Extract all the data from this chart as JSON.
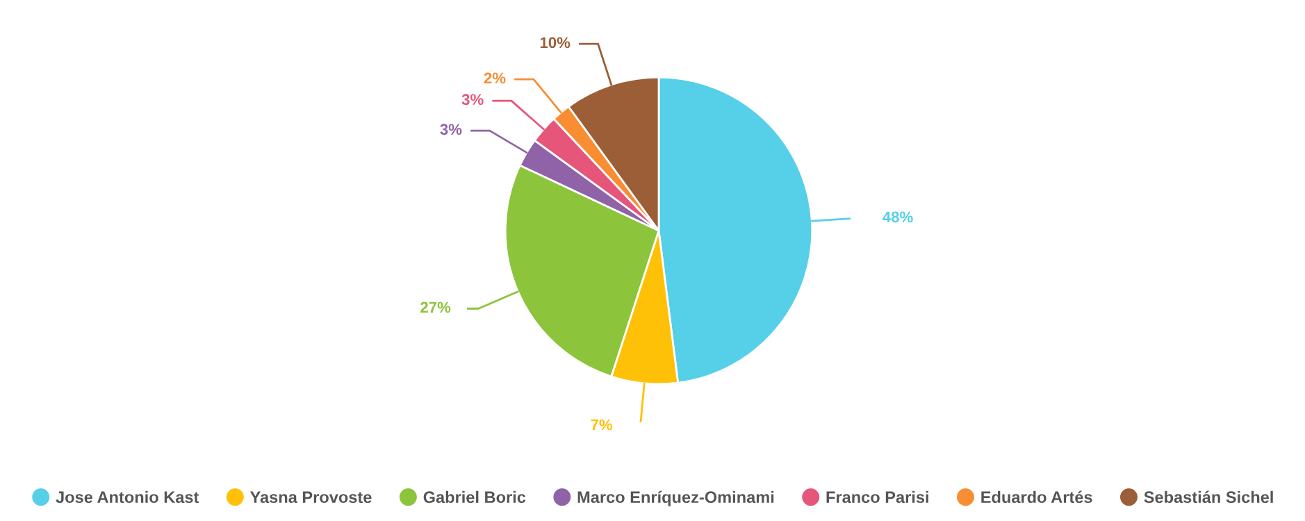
{
  "chart_data": {
    "type": "pie",
    "categories": [
      "Jose Antonio Kast",
      "Yasna Provoste",
      "Gabriel Boric",
      "Marco Enríquez-Ominami",
      "Franco Parisi",
      "Eduardo Artés",
      "Sebastián Sichel"
    ],
    "values": [
      48,
      7,
      27,
      3,
      3,
      2,
      10
    ],
    "value_labels": [
      "48%",
      "7%",
      "27%",
      "3%",
      "3%",
      "2%",
      "10%"
    ],
    "colors": [
      "#56cfe8",
      "#ffc107",
      "#8cc43c",
      "#9063a8",
      "#e5567a",
      "#f98d32",
      "#9b5e37"
    ],
    "legend": "bottom"
  }
}
